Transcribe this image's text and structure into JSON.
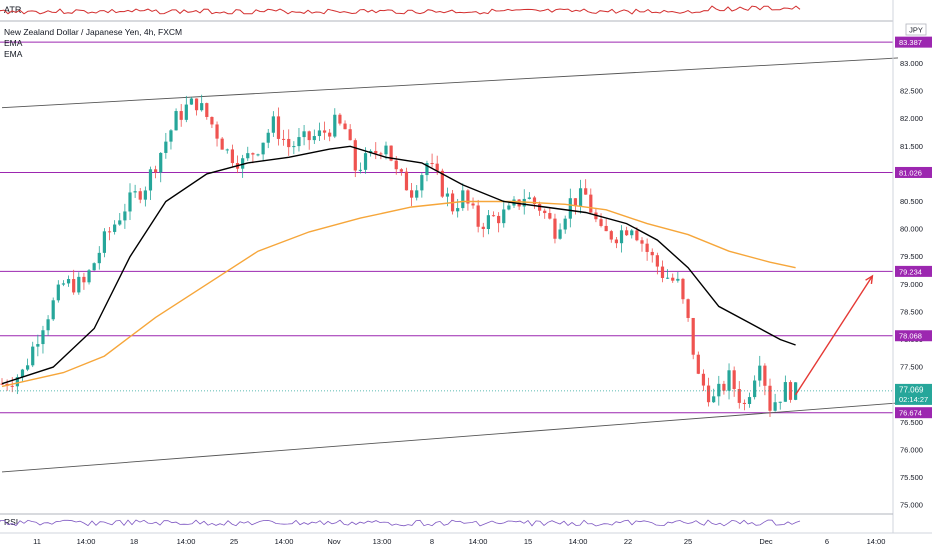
{
  "header": {
    "title": "New Zealand Dollar / Japanese Yen, 4h, FXCM",
    "indicator_1": "EMA",
    "indicator_2": "EMA",
    "currency": "JPY"
  },
  "panes": {
    "atr_label": "ATR",
    "rsi_label": "RSI"
  },
  "price_badges": {
    "last_price": "77.069",
    "countdown": "02:14:27"
  },
  "colors": {
    "up": "#26a69a",
    "down": "#ef5350",
    "level": "#9c27b0",
    "ema_fast": "#000000",
    "ema_slow": "#f6a63a",
    "channel": "#555555",
    "arrow": "#e53935",
    "last_price_badge": "#26a69a",
    "atr_line": "#d32f2f",
    "rsi_line": "#7e57c2"
  },
  "chart_data": {
    "type": "candlestick",
    "title": "New Zealand Dollar / Japanese Yen, 4h, FXCM",
    "y_ticks": [
      "83.000",
      "82.500",
      "82.000",
      "81.500",
      "81.000",
      "80.500",
      "80.000",
      "79.500",
      "79.000",
      "78.500",
      "78.000",
      "77.500",
      "77.000",
      "76.500",
      "76.000",
      "75.500",
      "75.000"
    ],
    "y_range": [
      74.9,
      83.6
    ],
    "x_ticks": [
      "11",
      "14:00",
      "18",
      "14:00",
      "25",
      "14:00",
      "Nov",
      "13:00",
      "8",
      "14:00",
      "15",
      "14:00",
      "22",
      "25",
      "Dec",
      "6",
      "14:00"
    ],
    "horizontal_levels": [
      {
        "value": 83.387,
        "label": "83.387"
      },
      {
        "value": 81.026,
        "label": "81.026"
      },
      {
        "value": 79.234,
        "label": "79.234"
      },
      {
        "value": 78.068,
        "label": "78.068"
      },
      {
        "value": 76.674,
        "label": "76.674"
      }
    ],
    "last_price": 77.069,
    "close_path": [
      [
        0,
        77.2
      ],
      [
        4,
        77.4
      ],
      [
        8,
        78.3
      ],
      [
        12,
        79.0
      ],
      [
        16,
        79.0
      ],
      [
        20,
        79.8
      ],
      [
        24,
        80.4
      ],
      [
        28,
        80.8
      ],
      [
        31,
        81.4
      ],
      [
        34,
        82.0
      ],
      [
        36,
        82.2
      ],
      [
        38,
        82.3
      ],
      [
        41,
        81.9
      ],
      [
        44,
        81.4
      ],
      [
        47,
        81.2
      ],
      [
        50,
        81.5
      ],
      [
        53,
        81.9
      ],
      [
        56,
        81.5
      ],
      [
        59,
        81.6
      ],
      [
        62,
        81.7
      ],
      [
        65,
        81.9
      ],
      [
        67,
        81.8
      ],
      [
        69,
        81.1
      ],
      [
        72,
        81.3
      ],
      [
        75,
        81.6
      ],
      [
        77,
        81.0
      ],
      [
        80,
        80.7
      ],
      [
        83,
        81.2
      ],
      [
        85,
        80.9
      ],
      [
        88,
        80.4
      ],
      [
        90,
        80.6
      ],
      [
        93,
        80.1
      ],
      [
        96,
        80.2
      ],
      [
        99,
        80.3
      ],
      [
        102,
        80.6
      ],
      [
        105,
        80.4
      ],
      [
        108,
        80.0
      ],
      [
        111,
        80.5
      ],
      [
        114,
        80.6
      ],
      [
        117,
        79.9
      ],
      [
        120,
        79.9
      ],
      [
        123,
        80.1
      ],
      [
        126,
        79.6
      ],
      [
        129,
        79.2
      ],
      [
        132,
        79.0
      ],
      [
        134,
        78.3
      ],
      [
        136,
        77.3
      ],
      [
        139,
        76.9
      ],
      [
        142,
        77.3
      ],
      [
        145,
        76.8
      ],
      [
        148,
        77.7
      ],
      [
        150,
        76.8
      ],
      [
        153,
        77.1
      ],
      [
        155,
        77.05
      ]
    ],
    "ema_fast_path": [
      [
        0,
        77.2
      ],
      [
        10,
        77.5
      ],
      [
        18,
        78.2
      ],
      [
        25,
        79.5
      ],
      [
        32,
        80.5
      ],
      [
        40,
        81.0
      ],
      [
        48,
        81.2
      ],
      [
        56,
        81.3
      ],
      [
        64,
        81.45
      ],
      [
        68,
        81.5
      ],
      [
        75,
        81.3
      ],
      [
        82,
        81.2
      ],
      [
        90,
        80.8
      ],
      [
        98,
        80.5
      ],
      [
        106,
        80.4
      ],
      [
        114,
        80.3
      ],
      [
        122,
        80.1
      ],
      [
        128,
        79.8
      ],
      [
        134,
        79.3
      ],
      [
        140,
        78.6
      ],
      [
        146,
        78.3
      ],
      [
        152,
        78.0
      ],
      [
        155,
        77.9
      ]
    ],
    "ema_slow_path": [
      [
        0,
        77.15
      ],
      [
        12,
        77.4
      ],
      [
        20,
        77.7
      ],
      [
        30,
        78.4
      ],
      [
        40,
        79.0
      ],
      [
        50,
        79.6
      ],
      [
        60,
        79.95
      ],
      [
        70,
        80.2
      ],
      [
        80,
        80.4
      ],
      [
        90,
        80.5
      ],
      [
        100,
        80.5
      ],
      [
        110,
        80.45
      ],
      [
        118,
        80.35
      ],
      [
        126,
        80.1
      ],
      [
        134,
        79.9
      ],
      [
        142,
        79.6
      ],
      [
        150,
        79.4
      ],
      [
        155,
        79.3
      ]
    ],
    "channel_upper": [
      [
        0,
        82.2
      ],
      [
        175,
        83.1
      ]
    ],
    "channel_lower": [
      [
        0,
        75.6
      ],
      [
        175,
        76.85
      ]
    ],
    "forecast_arrow": [
      [
        155,
        77.0
      ],
      [
        170,
        79.15
      ]
    ],
    "legend": "top-left",
    "grid": false
  }
}
